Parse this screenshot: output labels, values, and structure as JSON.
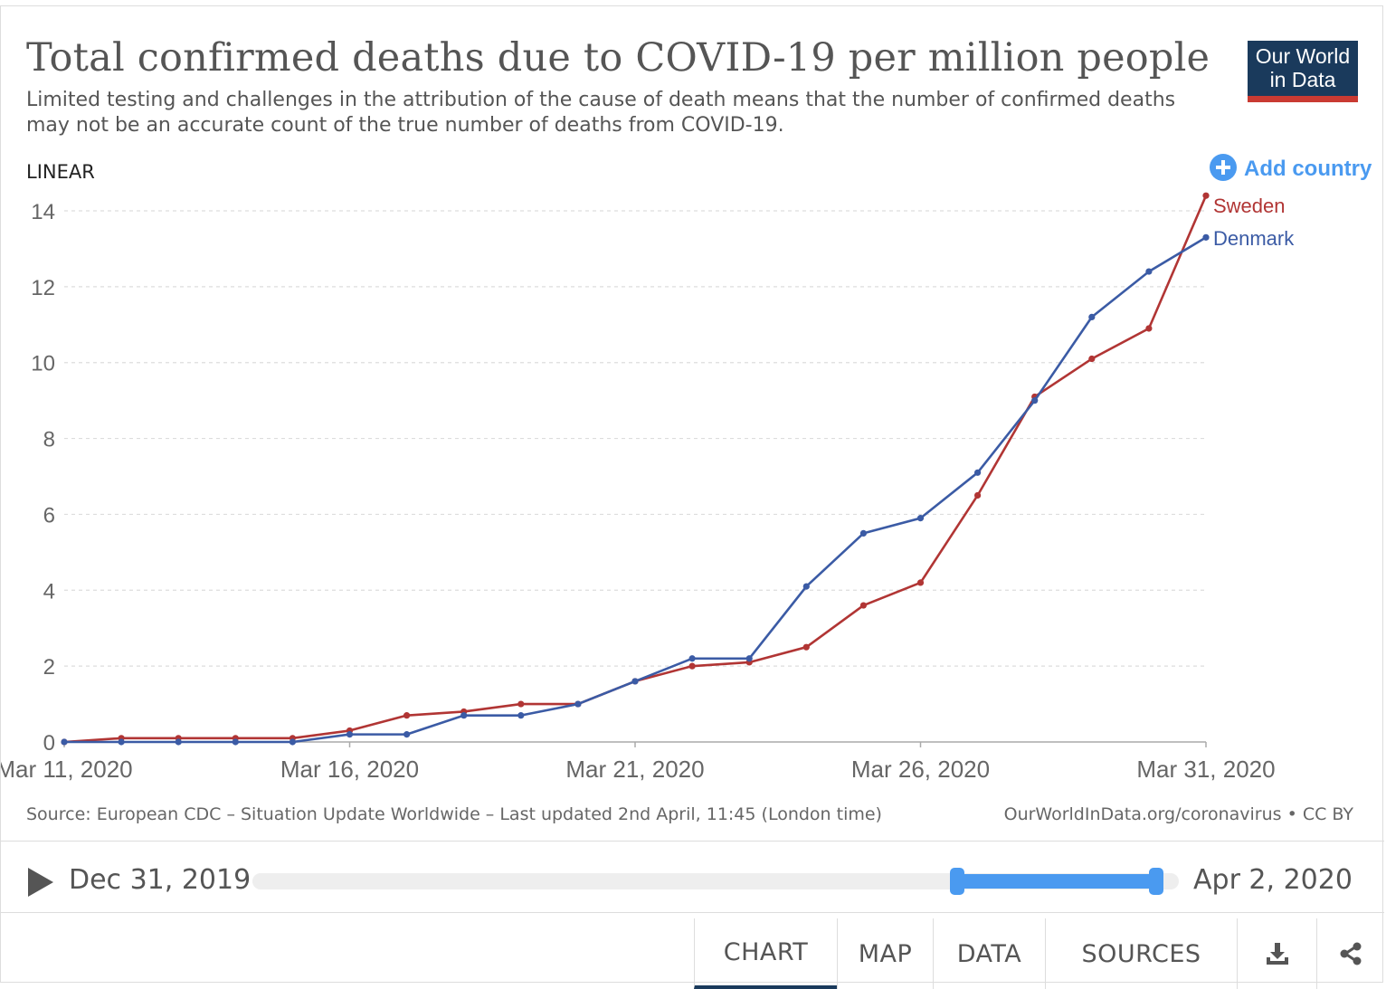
{
  "header": {
    "title": "Total confirmed deaths due to COVID-19 per million people",
    "subtitle": "Limited testing and challenges in the attribution of the cause of death means that the number of confirmed deaths may not be an accurate count of the true number of deaths from COVID-19.",
    "logo_line1": "Our World",
    "logo_line2": "in Data"
  },
  "controls": {
    "scale_label": "LINEAR",
    "add_country_label": "Add country"
  },
  "colors": {
    "sweden": "#b13534",
    "denmark": "#3b5ba5",
    "accent": "#4a9af0",
    "logo_bg": "#1a3a5c",
    "logo_bar": "#c93a32"
  },
  "chart_data": {
    "type": "line",
    "title": "Total confirmed deaths due to COVID-19 per million people",
    "x": [
      "Mar 11, 2020",
      "Mar 12, 2020",
      "Mar 13, 2020",
      "Mar 14, 2020",
      "Mar 15, 2020",
      "Mar 16, 2020",
      "Mar 17, 2020",
      "Mar 18, 2020",
      "Mar 19, 2020",
      "Mar 20, 2020",
      "Mar 21, 2020",
      "Mar 22, 2020",
      "Mar 23, 2020",
      "Mar 24, 2020",
      "Mar 25, 2020",
      "Mar 26, 2020",
      "Mar 27, 2020",
      "Mar 28, 2020",
      "Mar 29, 2020",
      "Mar 30, 2020",
      "Mar 31, 2020"
    ],
    "x_ticks": [
      "Mar 11, 2020",
      "Mar 16, 2020",
      "Mar 21, 2020",
      "Mar 26, 2020",
      "Mar 31, 2020"
    ],
    "y_ticks": [
      0,
      2,
      4,
      6,
      8,
      10,
      12,
      14
    ],
    "ylim": [
      0,
      14
    ],
    "grid": true,
    "legend": "right, labels at line ends",
    "series": [
      {
        "name": "Sweden",
        "color": "#b13534",
        "values": [
          0,
          0.1,
          0.1,
          0.1,
          0.1,
          0.3,
          0.7,
          0.8,
          1.0,
          1.0,
          1.6,
          2.0,
          2.1,
          2.5,
          3.6,
          4.2,
          6.5,
          9.1,
          10.1,
          10.9,
          14.4
        ]
      },
      {
        "name": "Denmark",
        "color": "#3b5ba5",
        "values": [
          0,
          0,
          0,
          0,
          0,
          0.2,
          0.2,
          0.7,
          0.7,
          1.0,
          1.6,
          2.2,
          2.2,
          4.1,
          5.5,
          5.9,
          7.1,
          9.0,
          11.2,
          12.4,
          13.3
        ]
      }
    ]
  },
  "footer": {
    "source": "Source: European CDC – Situation Update Worldwide – Last updated 2nd April, 11:45 (London time)",
    "url": "OurWorldInData.org/coronavirus • CC BY"
  },
  "timeline": {
    "start_label": "Dec 31, 2019",
    "end_label": "Apr 2, 2020"
  },
  "tabs": {
    "chart": "CHART",
    "map": "MAP",
    "data": "DATA",
    "sources": "SOURCES"
  }
}
